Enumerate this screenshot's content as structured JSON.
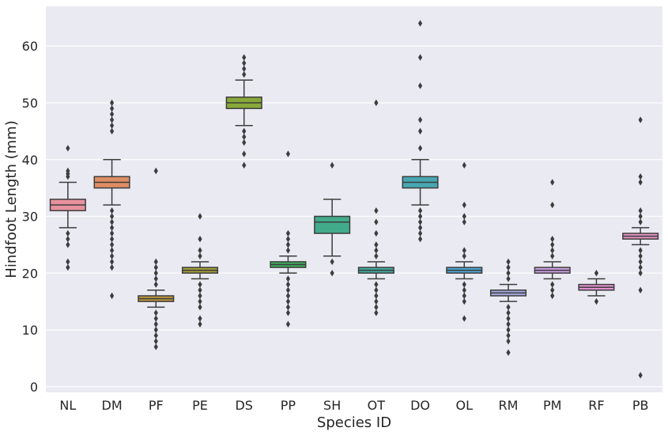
{
  "chart_data": {
    "type": "box",
    "xlabel": "Species ID",
    "ylabel": "Hindfoot Length (mm)",
    "ylim": [
      -1,
      67
    ],
    "yticks": [
      0,
      10,
      20,
      30,
      40,
      50,
      60
    ],
    "grid": true,
    "legend": "none",
    "series": [
      {
        "category": "NL",
        "color": "#e8919e",
        "whisker_low": 28,
        "q1": 31,
        "median": 32,
        "q3": 33,
        "whisker_high": 36,
        "outliers": [
          42,
          38,
          37.5,
          37,
          27,
          26,
          25,
          22,
          21
        ]
      },
      {
        "category": "DM",
        "color": "#df8d63",
        "whisker_low": 32,
        "q1": 35,
        "median": 36,
        "q3": 37,
        "whisker_high": 40,
        "outliers": [
          50,
          49,
          48,
          47,
          46,
          45,
          31,
          30,
          29,
          28,
          27,
          26,
          25,
          24,
          23,
          22,
          21,
          16
        ]
      },
      {
        "category": "PF",
        "color": "#b89539",
        "whisker_low": 14,
        "q1": 15,
        "median": 15.5,
        "q3": 16,
        "whisker_high": 17,
        "outliers": [
          38,
          22,
          21,
          20,
          19,
          18,
          13,
          12,
          11,
          10,
          9,
          8,
          7
        ]
      },
      {
        "category": "PE",
        "color": "#a49d3b",
        "whisker_low": 19,
        "q1": 20,
        "median": 20.5,
        "q3": 21,
        "whisker_high": 22,
        "outliers": [
          30,
          26,
          24,
          23,
          18,
          17,
          16,
          15,
          14,
          12,
          11
        ]
      },
      {
        "category": "DS",
        "color": "#88a839",
        "whisker_low": 46,
        "q1": 49,
        "median": 50,
        "q3": 51,
        "whisker_high": 54,
        "outliers": [
          58,
          57,
          56,
          55,
          45,
          44,
          43,
          41,
          39
        ]
      },
      {
        "category": "PP",
        "color": "#3eab5c",
        "whisker_low": 20,
        "q1": 21,
        "median": 21.5,
        "q3": 22,
        "whisker_high": 23,
        "outliers": [
          41,
          27,
          26,
          25,
          24,
          19,
          18,
          17,
          16,
          15,
          14,
          13,
          11
        ]
      },
      {
        "category": "SH",
        "color": "#42ab8a",
        "whisker_low": 23,
        "q1": 27,
        "median": 29,
        "q3": 30,
        "whisker_high": 33,
        "outliers": [
          39,
          22,
          20
        ]
      },
      {
        "category": "OT",
        "color": "#43a99c",
        "whisker_low": 19,
        "q1": 20,
        "median": 20.5,
        "q3": 21,
        "whisker_high": 22,
        "outliers": [
          50,
          31,
          29,
          27,
          25,
          24,
          23,
          18,
          17,
          16,
          15,
          14,
          13
        ]
      },
      {
        "category": "DO",
        "color": "#47a7b1",
        "whisker_low": 32,
        "q1": 35,
        "median": 36,
        "q3": 37,
        "whisker_high": 40,
        "outliers": [
          64,
          58,
          53,
          47,
          45,
          42,
          31,
          30,
          29,
          28,
          27,
          26
        ]
      },
      {
        "category": "OL",
        "color": "#4fa4d0",
        "whisker_low": 19,
        "q1": 20,
        "median": 20.5,
        "q3": 21,
        "whisker_high": 22,
        "outliers": [
          39,
          32,
          30,
          29,
          24,
          23,
          18,
          17,
          16,
          15,
          12
        ]
      },
      {
        "category": "RM",
        "color": "#a5a9e0",
        "whisker_low": 15,
        "q1": 16,
        "median": 16.5,
        "q3": 17,
        "whisker_high": 18,
        "outliers": [
          22,
          21,
          20,
          19,
          14,
          13,
          12,
          11,
          10,
          9,
          8,
          6
        ]
      },
      {
        "category": "PM",
        "color": "#cc9de3",
        "whisker_low": 19,
        "q1": 20,
        "median": 20.5,
        "q3": 21,
        "whisker_high": 22,
        "outliers": [
          36,
          32,
          26,
          25,
          24,
          23,
          18,
          17,
          16
        ]
      },
      {
        "category": "RF",
        "color": "#e391cf",
        "whisker_low": 16,
        "q1": 17,
        "median": 17.5,
        "q3": 18,
        "whisker_high": 19,
        "outliers": [
          20,
          15
        ]
      },
      {
        "category": "PB",
        "color": "#e393c1",
        "whisker_low": 25,
        "q1": 26,
        "median": 26.5,
        "q3": 27,
        "whisker_high": 28,
        "outliers": [
          47,
          37,
          36,
          31,
          30,
          29,
          24,
          23,
          22,
          21,
          20,
          17,
          2
        ]
      }
    ]
  }
}
